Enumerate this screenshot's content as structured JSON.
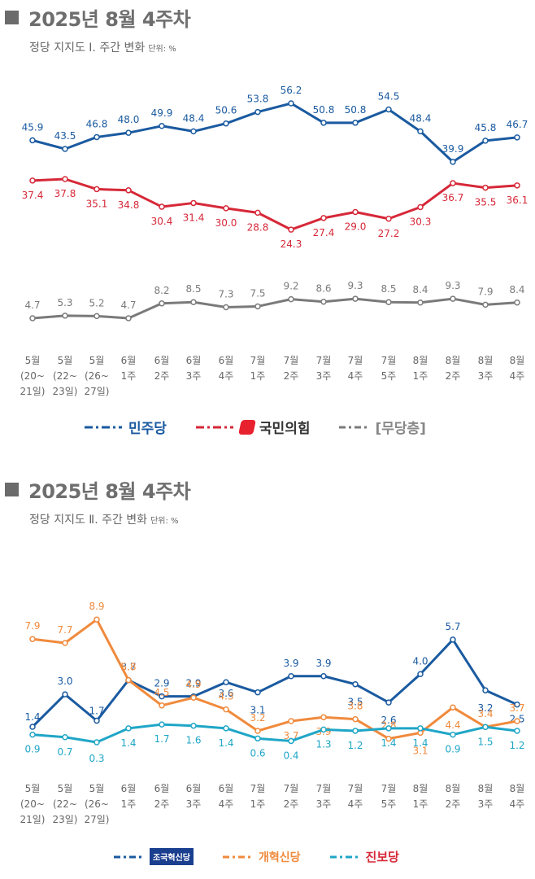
{
  "panels": [
    {
      "header": "2025년 8월 4주차",
      "subtitle": "정당 지지도 Ⅰ. 주간 변화",
      "unit": "단위: %",
      "legend": [
        {
          "name": "민주당",
          "color": "#1a5aa0"
        },
        {
          "name": "국민의힘",
          "color": "#d62838"
        },
        {
          "name": "[무당층]",
          "color": "#7a7a7a"
        }
      ]
    },
    {
      "header": "2025년 8월 4주차",
      "subtitle": "정당 지지도 Ⅱ. 주간 변화",
      "unit": "단위: %",
      "legend": [
        {
          "name": "조국혁신당",
          "color": "#1a5aa0"
        },
        {
          "name": "개혁신당",
          "color": "#f08a3c"
        },
        {
          "name": "진보당",
          "color": "#1fa6c7"
        }
      ]
    }
  ],
  "chart_data": [
    {
      "type": "line",
      "title": "정당 지지도 Ⅰ. 주간 변화",
      "unit": "단위: %",
      "categories": [
        [
          "5월",
          "(20~",
          "21일)"
        ],
        [
          "5월",
          "(22~",
          "23일)"
        ],
        [
          "5월",
          "(26~",
          "27일)"
        ],
        [
          "6월",
          "1주"
        ],
        [
          "6월",
          "2주"
        ],
        [
          "6월",
          "3주"
        ],
        [
          "6월",
          "4주"
        ],
        [
          "7월",
          "1주"
        ],
        [
          "7월",
          "2주"
        ],
        [
          "7월",
          "3주"
        ],
        [
          "7월",
          "4주"
        ],
        [
          "7월",
          "5주"
        ],
        [
          "8월",
          "1주"
        ],
        [
          "8월",
          "2주"
        ],
        [
          "8월",
          "3주"
        ],
        [
          "8월",
          "4주"
        ]
      ],
      "series": [
        {
          "name": "민주당",
          "color": "#1a5aa0",
          "values": [
            45.9,
            43.5,
            46.8,
            48.0,
            49.9,
            48.4,
            50.6,
            53.8,
            56.2,
            50.8,
            50.8,
            54.5,
            48.4,
            39.9,
            45.8,
            46.7
          ]
        },
        {
          "name": "국민의힘",
          "color": "#d62838",
          "values": [
            37.4,
            37.8,
            35.1,
            34.8,
            30.4,
            31.4,
            30.0,
            28.8,
            24.3,
            27.4,
            29.0,
            27.2,
            30.3,
            36.7,
            35.5,
            36.1
          ]
        },
        {
          "name": "[무당층]",
          "color": "#7a7a7a",
          "values": [
            4.7,
            5.3,
            5.2,
            4.7,
            8.2,
            8.5,
            7.3,
            7.5,
            9.2,
            8.6,
            9.3,
            8.5,
            8.4,
            9.3,
            7.9,
            8.4
          ]
        }
      ]
    },
    {
      "type": "line",
      "title": "정당 지지도 Ⅱ. 주간 변화",
      "unit": "단위: %",
      "categories": [
        [
          "5월",
          "(20~",
          "21일)"
        ],
        [
          "5월",
          "(22~",
          "23일)"
        ],
        [
          "5월",
          "(26~",
          "27일)"
        ],
        [
          "6월",
          "1주"
        ],
        [
          "6월",
          "2주"
        ],
        [
          "6월",
          "3주"
        ],
        [
          "6월",
          "4주"
        ],
        [
          "7월",
          "1주"
        ],
        [
          "7월",
          "2주"
        ],
        [
          "7월",
          "3주"
        ],
        [
          "7월",
          "4주"
        ],
        [
          "7월",
          "5주"
        ],
        [
          "8월",
          "1주"
        ],
        [
          "8월",
          "2주"
        ],
        [
          "8월",
          "3주"
        ],
        [
          "8월",
          "4주"
        ]
      ],
      "series": [
        {
          "name": "조국혁신당",
          "color": "#1a5aa0",
          "values": [
            1.4,
            3.0,
            1.7,
            3.7,
            2.9,
            2.9,
            3.6,
            3.1,
            3.9,
            3.9,
            3.5,
            2.6,
            4.0,
            5.7,
            3.2,
            2.5
          ]
        },
        {
          "name": "개혁신당",
          "color": "#f08a3c",
          "values": [
            7.9,
            7.7,
            8.9,
            5.8,
            4.5,
            4.9,
            4.3,
            3.2,
            3.7,
            3.9,
            3.8,
            2.8,
            3.1,
            4.4,
            3.4,
            3.7
          ]
        },
        {
          "name": "진보당",
          "color": "#1fa6c7",
          "values": [
            0.9,
            0.7,
            0.3,
            1.4,
            1.7,
            1.6,
            1.4,
            0.6,
            0.4,
            1.3,
            1.2,
            1.4,
            1.4,
            0.9,
            1.5,
            1.2
          ]
        }
      ]
    }
  ]
}
